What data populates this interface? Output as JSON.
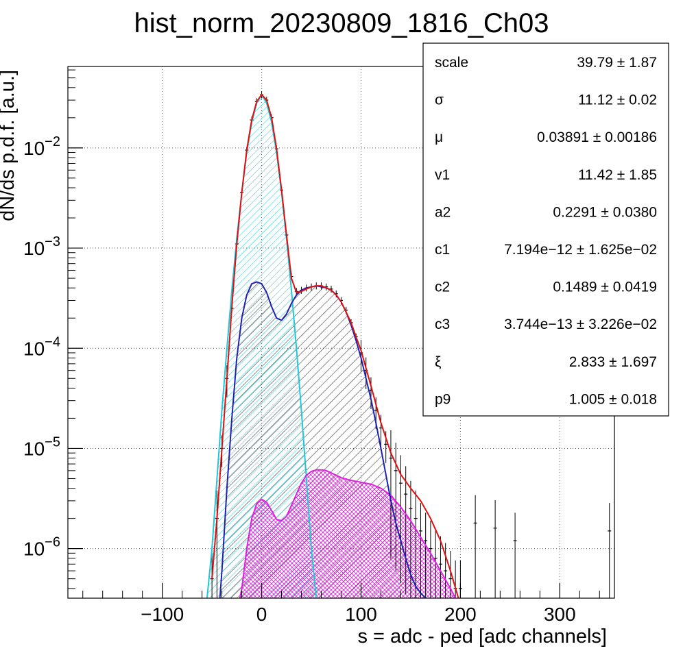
{
  "chart_data": {
    "type": "line",
    "title": "hist_norm_20230809_1816_Ch03",
    "xlabel": "s = adc - ped [adc channels]",
    "ylabel": "dN/ds p.d.f. [a.u.]",
    "xlim": [
      -195,
      355
    ],
    "ylim": [
      3.2e-07,
      0.065
    ],
    "yscale": "log",
    "grid": true,
    "x_ticks": [
      -100,
      0,
      100,
      200,
      300
    ],
    "x_tick_labels": [
      "−100",
      "0",
      "100",
      "200",
      "300"
    ],
    "y_ticks": [
      {
        "value": 1e-06,
        "base": "10",
        "exp": "−6"
      },
      {
        "value": 1e-05,
        "base": "10",
        "exp": "−5"
      },
      {
        "value": 0.0001,
        "base": "10",
        "exp": "−4"
      },
      {
        "value": 0.001,
        "base": "10",
        "exp": "−3"
      },
      {
        "value": 0.01,
        "base": "10",
        "exp": "−2"
      }
    ],
    "series": [
      {
        "color": "#000000",
        "style": "histogram-with-errors",
        "x": [
          -50,
          -45,
          -40,
          -35,
          -30,
          -25,
          -20,
          -15,
          -10,
          -5,
          0,
          5,
          10,
          15,
          20,
          25,
          30,
          35,
          40,
          45,
          50,
          55,
          60,
          65,
          70,
          75,
          80,
          85,
          90,
          95,
          100,
          105,
          110,
          115,
          120,
          125,
          130,
          135,
          140,
          145,
          150,
          155,
          160,
          165,
          170,
          175,
          180,
          185,
          190,
          195,
          200,
          215,
          235,
          255,
          350
        ],
        "y": [
          5e-07,
          2e-06,
          1e-05,
          5e-05,
          0.00025,
          0.0011,
          0.0036,
          0.0095,
          0.019,
          0.029,
          0.034,
          0.03,
          0.02,
          0.0098,
          0.0038,
          0.00135,
          0.00052,
          0.00037,
          0.00038,
          0.0004,
          0.00041,
          0.00042,
          0.00042,
          0.00041,
          0.00039,
          0.00035,
          0.0003,
          0.00024,
          0.00018,
          0.00013,
          9e-05,
          6e-05,
          3.8e-05,
          2.4e-05,
          1.6e-05,
          1.1e-05,
          8e-06,
          6e-06,
          4.5e-06,
          3.5e-06,
          2.5e-06,
          2e-06,
          1.5e-06,
          1.2e-06,
          1e-06,
          8e-07,
          7e-07,
          6e-07,
          5e-07,
          4e-07,
          4e-07,
          1.8e-06,
          1.6e-06,
          1.2e-06,
          1.5e-06
        ]
      },
      {
        "color": "#e01010",
        "style": "line",
        "x": [
          -50,
          -45,
          -40,
          -35,
          -30,
          -25,
          -20,
          -15,
          -10,
          -5,
          0,
          5,
          10,
          15,
          20,
          25,
          30,
          35,
          40,
          45,
          50,
          55,
          60,
          65,
          70,
          75,
          80,
          85,
          90,
          95,
          100,
          110,
          120,
          130,
          140,
          150,
          160,
          170,
          180,
          190,
          198
        ],
        "y": [
          5e-07,
          2e-06,
          1e-05,
          5e-05,
          0.00026,
          0.0011,
          0.0036,
          0.0095,
          0.019,
          0.029,
          0.034,
          0.03,
          0.02,
          0.0098,
          0.0038,
          0.00135,
          0.0005,
          0.00036,
          0.00037,
          0.00039,
          0.00041,
          0.00042,
          0.00042,
          0.0004,
          0.00038,
          0.00034,
          0.00029,
          0.00023,
          0.00018,
          0.00013,
          9.5e-05,
          4.2e-05,
          1.8e-05,
          9e-06,
          5.5e-06,
          4e-06,
          3e-06,
          2e-06,
          1.2e-06,
          6e-07,
          3.2e-07
        ]
      },
      {
        "color": "#1e22b4",
        "style": "line",
        "hatch": "#000000",
        "x": [
          -42,
          -40,
          -35,
          -30,
          -25,
          -20,
          -15,
          -10,
          -5,
          0,
          5,
          10,
          15,
          20,
          25,
          30,
          35,
          40,
          45,
          50,
          55,
          60,
          65,
          70,
          75,
          80,
          85,
          90,
          95,
          100,
          105,
          110,
          115,
          120,
          125,
          130,
          135,
          140,
          145,
          150,
          155,
          160,
          165
        ],
        "y": [
          3.2e-07,
          6e-07,
          4e-06,
          2e-05,
          8e-05,
          0.0002,
          0.00034,
          0.00044,
          0.00046,
          0.00044,
          0.00036,
          0.00026,
          0.0002,
          0.00019,
          0.00022,
          0.00028,
          0.00034,
          0.00038,
          0.0004,
          0.00041,
          0.00042,
          0.00041,
          0.0004,
          0.00038,
          0.00034,
          0.00029,
          0.00023,
          0.00017,
          0.00012,
          8e-05,
          5e-05,
          3.1e-05,
          1.8e-05,
          1e-05,
          5.5e-06,
          3e-06,
          1.8e-06,
          1.2e-06,
          8e-07,
          5.5e-07,
          4.2e-07,
          3.6e-07,
          3.2e-07
        ]
      },
      {
        "color": "#20c8d8",
        "style": "line",
        "hatch": "#20c8d8",
        "x": [
          -55,
          -50,
          -45,
          -40,
          -35,
          -30,
          -25,
          -20,
          -15,
          -10,
          -5,
          0,
          5,
          10,
          15,
          20,
          25,
          30,
          35,
          40,
          45,
          50,
          55
        ],
        "y": [
          3.2e-07,
          1e-06,
          5e-06,
          2.4e-05,
          0.0001,
          0.00038,
          0.00125,
          0.0036,
          0.009,
          0.018,
          0.028,
          0.034,
          0.028,
          0.018,
          0.009,
          0.0036,
          0.00125,
          0.00038,
          0.0001,
          2.4e-05,
          5e-06,
          1e-06,
          3.2e-07
        ]
      },
      {
        "color": "#e020e0",
        "style": "line",
        "hatch": "#e020e0",
        "x": [
          -22,
          -20,
          -15,
          -10,
          -5,
          0,
          5,
          10,
          15,
          20,
          25,
          30,
          35,
          40,
          45,
          50,
          55,
          60,
          65,
          70,
          75,
          80,
          90,
          100,
          110,
          120,
          130,
          140,
          150,
          160,
          170,
          180,
          190,
          195
        ],
        "y": [
          3.2e-07,
          4e-07,
          1e-06,
          2e-06,
          2.8e-06,
          3.1e-06,
          2.9e-06,
          2.4e-06,
          1.95e-06,
          1.9e-06,
          2.1e-06,
          2.7e-06,
          3.5e-06,
          4.5e-06,
          5.4e-06,
          5.9e-06,
          6.1e-06,
          6.1e-06,
          6e-06,
          5.7e-06,
          5.4e-06,
          5.1e-06,
          4.8e-06,
          4.6e-06,
          4.4e-06,
          4e-06,
          3.4e-06,
          2.6e-06,
          1.9e-06,
          1.3e-06,
          9e-07,
          6e-07,
          4e-07,
          3.2e-07
        ]
      }
    ],
    "stats": [
      {
        "label": "scale",
        "value": "39.79 ± 1.87"
      },
      {
        "label": "σ",
        "value": "11.12 ± 0.02"
      },
      {
        "label": "μ",
        "value": "0.03891 ± 0.00186"
      },
      {
        "label": "v1",
        "value": "11.42 ± 1.85"
      },
      {
        "label": "a2",
        "value": "0.2291 ± 0.0380"
      },
      {
        "label": "c1",
        "value": "7.194e−12 ± 1.625e−02"
      },
      {
        "label": "c2",
        "value": "0.1489 ± 0.0419"
      },
      {
        "label": "c3",
        "value": "3.744e−13 ± 3.226e−02"
      },
      {
        "label": "ξ",
        "value": "2.833 ± 1.697"
      },
      {
        "label": "p9",
        "value": "1.005 ± 0.018"
      }
    ],
    "stats_box_placement": "top-right"
  }
}
